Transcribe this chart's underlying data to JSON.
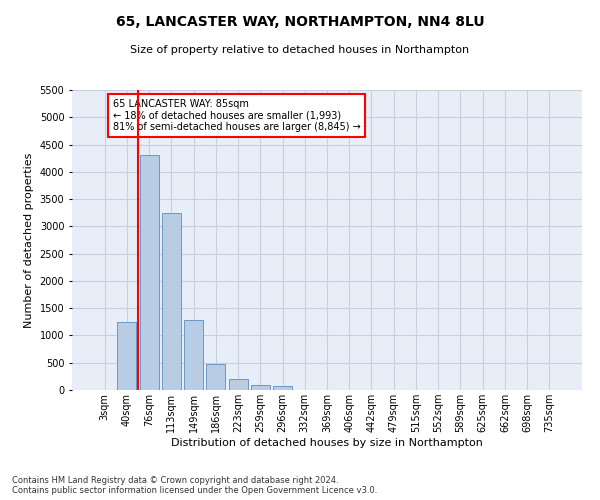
{
  "title_line1": "65, LANCASTER WAY, NORTHAMPTON, NN4 8LU",
  "title_line2": "Size of property relative to detached houses in Northampton",
  "xlabel": "Distribution of detached houses by size in Northampton",
  "ylabel": "Number of detached properties",
  "footnote": "Contains HM Land Registry data © Crown copyright and database right 2024.\nContains public sector information licensed under the Open Government Licence v3.0.",
  "bar_labels": [
    "3sqm",
    "40sqm",
    "76sqm",
    "113sqm",
    "149sqm",
    "186sqm",
    "223sqm",
    "259sqm",
    "296sqm",
    "332sqm",
    "369sqm",
    "406sqm",
    "442sqm",
    "479sqm",
    "515sqm",
    "552sqm",
    "589sqm",
    "625sqm",
    "662sqm",
    "698sqm",
    "735sqm"
  ],
  "bar_values": [
    0,
    1250,
    4300,
    3250,
    1280,
    480,
    200,
    100,
    70,
    0,
    0,
    0,
    0,
    0,
    0,
    0,
    0,
    0,
    0,
    0,
    0
  ],
  "bar_color": "#b8cce4",
  "bar_edge_color": "#6699cc",
  "grid_color": "#c8d0e0",
  "background_color": "#e8eef8",
  "annotation_text_line1": "65 LANCASTER WAY: 85sqm",
  "annotation_text_line2": "← 18% of detached houses are smaller (1,993)",
  "annotation_text_line3": "81% of semi-detached houses are larger (8,845) →",
  "ylim": [
    0,
    5500
  ],
  "yticks": [
    0,
    500,
    1000,
    1500,
    2000,
    2500,
    3000,
    3500,
    4000,
    4500,
    5000,
    5500
  ],
  "red_line_index": 1.5,
  "title_fontsize": 10,
  "subtitle_fontsize": 8,
  "ylabel_fontsize": 8,
  "xlabel_fontsize": 8,
  "tick_fontsize": 7,
  "annotation_fontsize": 7,
  "footnote_fontsize": 6
}
